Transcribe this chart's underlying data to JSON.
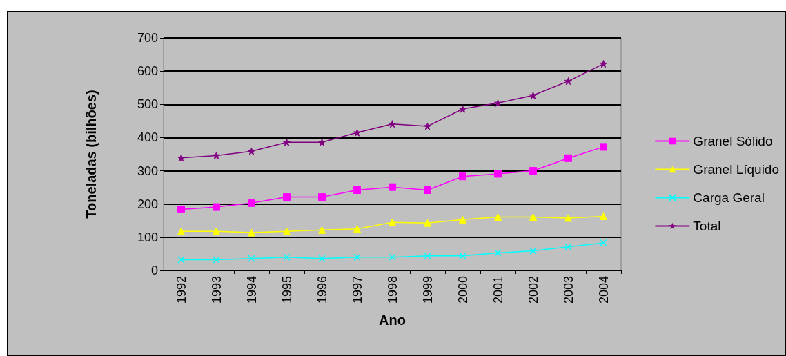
{
  "chart_data": {
    "type": "line",
    "xlabel": "Ano",
    "ylabel": "Toneladas (bilhões)",
    "categories": [
      "1992",
      "1993",
      "1994",
      "1995",
      "1996",
      "1997",
      "1998",
      "1999",
      "2000",
      "2001",
      "2002",
      "2003",
      "2004"
    ],
    "series": [
      {
        "name": "Granel Sólido",
        "color": "#ff00ff",
        "marker": "square",
        "values": [
          184,
          191,
          203,
          221,
          221,
          242,
          251,
          242,
          283,
          291,
          300,
          338,
          372
        ]
      },
      {
        "name": "Granel Líquido",
        "color": "#ffff00",
        "marker": "triangle",
        "values": [
          118,
          118,
          114,
          118,
          122,
          125,
          145,
          143,
          153,
          161,
          161,
          158,
          163
        ]
      },
      {
        "name": "Carga Geral",
        "color": "#00ffff",
        "marker": "cross",
        "values": [
          32,
          32,
          36,
          40,
          36,
          40,
          40,
          44,
          44,
          53,
          59,
          71,
          83
        ]
      },
      {
        "name": "Total",
        "color": "#800080",
        "marker": "star",
        "values": [
          339,
          346,
          359,
          386,
          386,
          415,
          441,
          434,
          486,
          504,
          527,
          570,
          622
        ]
      }
    ],
    "ylim": [
      0,
      700
    ],
    "yticks": [
      0,
      100,
      200,
      300,
      400,
      500,
      600,
      700
    ],
    "grid": "y",
    "legend": "right",
    "line_style": "solid"
  }
}
